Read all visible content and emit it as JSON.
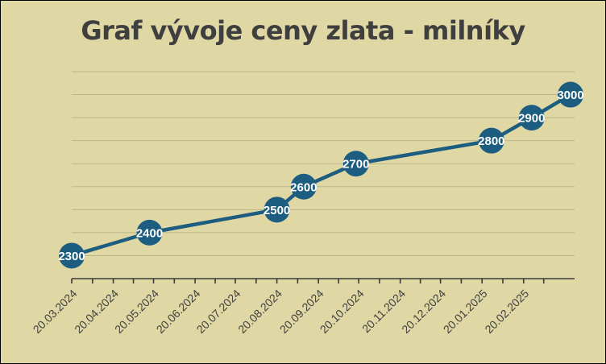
{
  "chart_data": {
    "type": "line",
    "title": "Graf vývoje ceny zlata - milníky",
    "xlabel": "",
    "ylabel": "",
    "x_ticks": [
      "20.03.2024",
      "20.04.2024",
      "20.05.2024",
      "20.06.2024",
      "20.07.2024",
      "20.08.2024",
      "20.09.2024",
      "20.10.2024",
      "20.11.2024",
      "20.12.2024",
      "20.01.2025",
      "20.02.2025"
    ],
    "xlim": [
      "2024-03-20",
      "2025-03-30"
    ],
    "ylim": [
      2200,
      3100
    ],
    "grid": "horizontal",
    "legend": "none",
    "colors": {
      "background": "#e0d8a4",
      "series": "#1d5d80",
      "title": "#3f3f3f",
      "label": "#ffffff"
    },
    "series": [
      {
        "points": [
          {
            "x": "2024-03-20",
            "y": 2300
          },
          {
            "x": "2024-05-17",
            "y": 2400
          },
          {
            "x": "2024-08-20",
            "y": 2500
          },
          {
            "x": "2024-09-09",
            "y": 2600
          },
          {
            "x": "2024-10-18",
            "y": 2700
          },
          {
            "x": "2025-01-27",
            "y": 2800
          },
          {
            "x": "2025-02-26",
            "y": 2900
          },
          {
            "x": "2025-03-27",
            "y": 3000
          }
        ]
      }
    ]
  }
}
